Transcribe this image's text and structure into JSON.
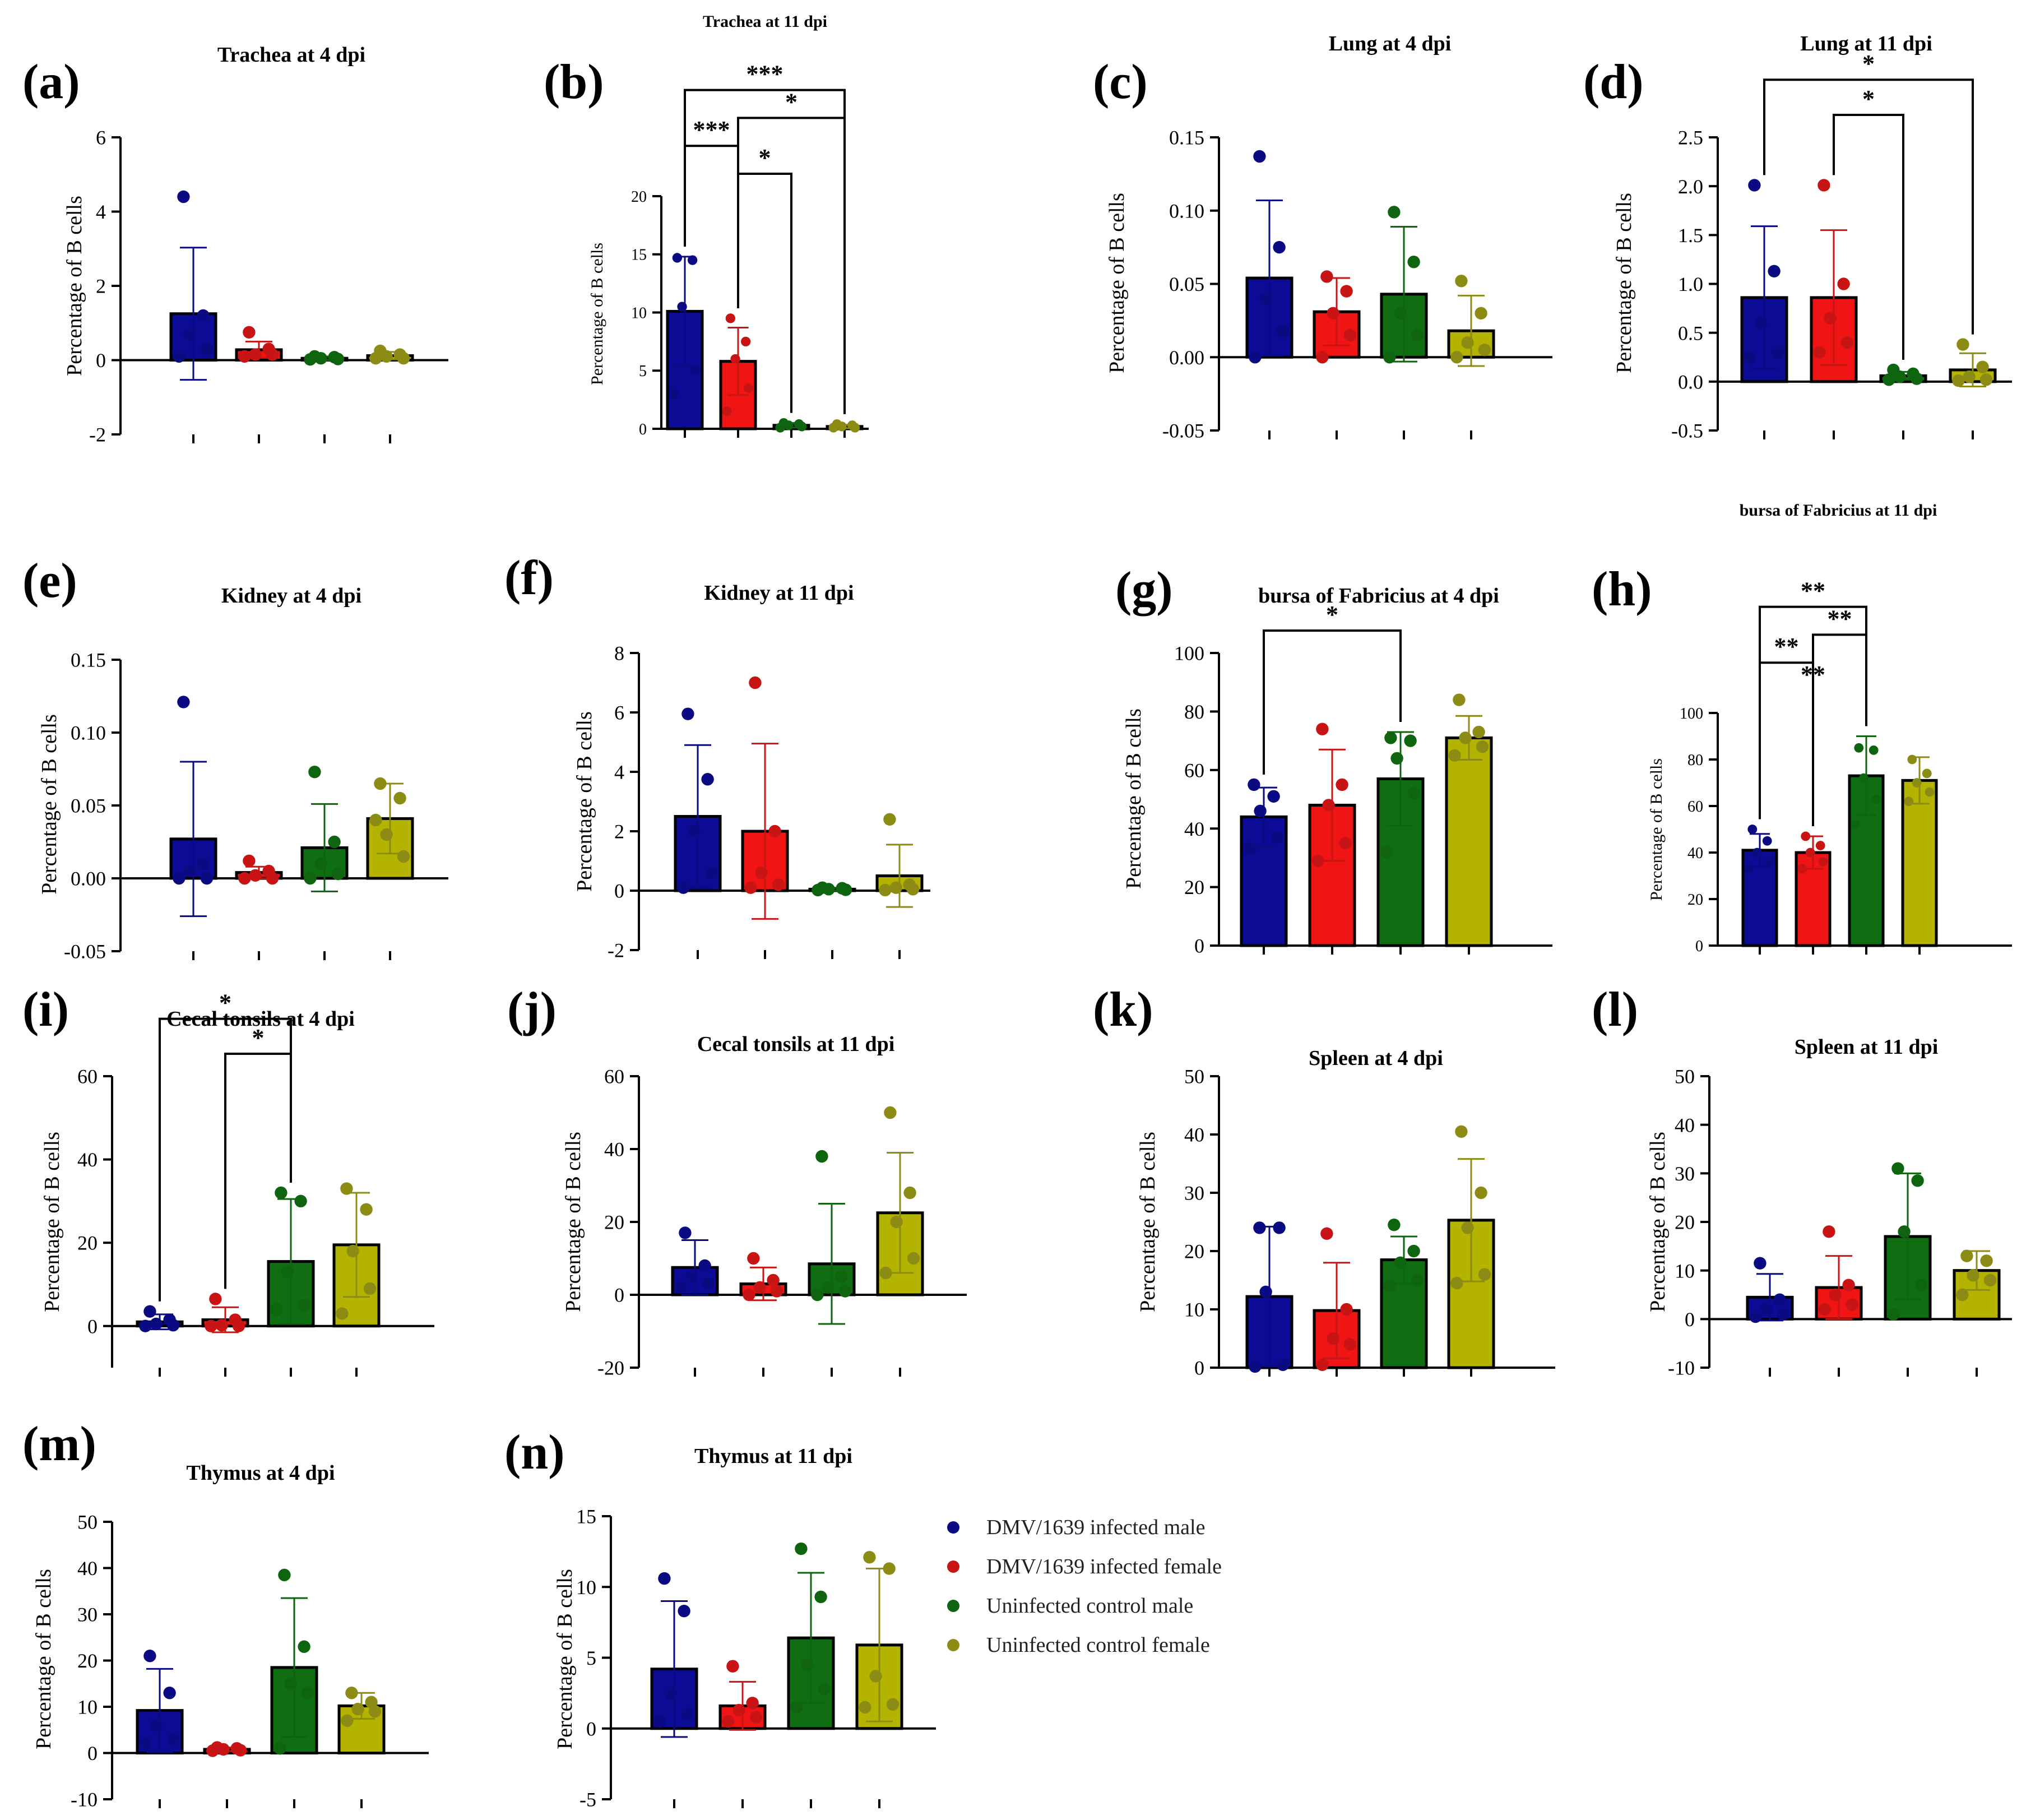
{
  "colors": {
    "male_infected": "#0b0b96",
    "female_infected": "#f01414",
    "male_control": "#0f6e12",
    "female_control": "#b4b400",
    "male_infected_dot": "#0a0a82",
    "female_infected_dot": "#c81414",
    "male_control_dot": "#0f640f",
    "female_control_dot": "#8c8c14"
  },
  "legend": {
    "items": [
      {
        "label": "DMV/1639 infected male",
        "color": "#0a0a82"
      },
      {
        "label": "DMV/1639 infected female",
        "color": "#c81414"
      },
      {
        "label": "Uninfected control male",
        "color": "#0f640f"
      },
      {
        "label": "Uninfected control female",
        "color": "#8c8c14"
      }
    ]
  },
  "chart_data": [
    {
      "letter": "(a)",
      "title": "Trachea at 4 dpi",
      "type": "bar",
      "ylabel": "Percentage of B cells",
      "ylim": [
        -2,
        6
      ],
      "yticks": [
        "-2",
        "0",
        "2",
        "4",
        "6"
      ],
      "bars": [
        1.25,
        0.28,
        0.05,
        0.12
      ],
      "errors": [
        1.78,
        0.22,
        0.05,
        0.1
      ],
      "points": [
        [
          4.4,
          1.2,
          0.7,
          0.3,
          0.1
        ],
        [
          0.75,
          0.3,
          0.15,
          0.15,
          0.1
        ],
        [
          0.1,
          0.08,
          0.05,
          0.03,
          0.02
        ],
        [
          0.25,
          0.15,
          0.1,
          0.05,
          0.05
        ]
      ],
      "sig": []
    },
    {
      "letter": "(b)",
      "title": "Trachea at 11 dpi",
      "type": "bar",
      "ylabel": "Percentage of B cells",
      "ylim": [
        0,
        20
      ],
      "yticks": [
        "0",
        "5",
        "10",
        "15",
        "20"
      ],
      "bars": [
        10.1,
        5.8,
        0.3,
        0.2
      ],
      "errors": [
        4.7,
        2.9,
        0.2,
        0.15
      ],
      "points": [
        [
          14.7,
          14.5,
          10.5,
          5.0,
          3.0
        ],
        [
          9.5,
          7.5,
          6.0,
          3.5,
          1.5
        ],
        [
          0.5,
          0.4,
          0.3,
          0.2,
          0.1
        ],
        [
          0.4,
          0.3,
          0.2,
          0.1,
          0.1
        ]
      ],
      "sig": [
        {
          "from": 1,
          "to": 3,
          "label": "*"
        },
        {
          "from": 0,
          "to": 2,
          "label": "***"
        },
        {
          "from": 1,
          "to": 4,
          "label": "*"
        },
        {
          "from": 0,
          "to": 4,
          "label": "***"
        }
      ]
    },
    {
      "letter": "(c)",
      "title": "Lung at 4 dpi",
      "type": "bar",
      "ylabel": "Percentage of B cells",
      "ylim": [
        -0.05,
        0.15
      ],
      "yticks": [
        "-0.05",
        "0.00",
        "0.05",
        "0.10",
        "0.15"
      ],
      "bars": [
        0.054,
        0.031,
        0.043,
        0.018
      ],
      "errors": [
        0.053,
        0.023,
        0.046,
        0.024
      ],
      "points": [
        [
          0.137,
          0.075,
          0.04,
          0.018,
          0.0
        ],
        [
          0.055,
          0.045,
          0.03,
          0.015,
          0.0
        ],
        [
          0.099,
          0.065,
          0.03,
          0.015,
          0.0
        ],
        [
          0.052,
          0.03,
          0.01,
          0.005,
          0.0
        ]
      ],
      "sig": []
    },
    {
      "letter": "(d)",
      "title": "Lung at 11 dpi",
      "type": "bar",
      "ylabel": "Percentage of B cells",
      "ylim": [
        -0.5,
        2.5
      ],
      "yticks": [
        "-0.5",
        "0.0",
        "0.5",
        "1.0",
        "1.5",
        "2.0",
        "2.5"
      ],
      "bars": [
        0.86,
        0.86,
        0.06,
        0.12
      ],
      "errors": [
        0.73,
        0.69,
        0.04,
        0.17
      ],
      "points": [
        [
          2.01,
          1.13,
          0.6,
          0.3,
          0.25
        ],
        [
          2.01,
          1.0,
          0.65,
          0.4,
          0.3
        ],
        [
          0.12,
          0.08,
          0.05,
          0.03,
          0.02
        ],
        [
          0.38,
          0.15,
          0.05,
          0.02,
          0.01
        ]
      ],
      "sig": [
        {
          "from": 1,
          "to": 3,
          "label": "*"
        },
        {
          "from": 0,
          "to": 4,
          "label": "*"
        }
      ]
    },
    {
      "letter": "(e)",
      "title": "Kidney at 4 dpi",
      "type": "bar",
      "ylabel": "Percentage of B cells",
      "ylim": [
        -0.05,
        0.15
      ],
      "yticks": [
        "-0.05",
        "0.00",
        "0.05",
        "0.10",
        "0.15"
      ],
      "bars": [
        0.027,
        0.004,
        0.021,
        0.041
      ],
      "errors": [
        0.053,
        0.004,
        0.03,
        0.024
      ],
      "points": [
        [
          0.121,
          0.01,
          0.005,
          0.0,
          0.0
        ],
        [
          0.012,
          0.005,
          0.002,
          0.0,
          0.0
        ],
        [
          0.073,
          0.025,
          0.01,
          0.003,
          0.0
        ],
        [
          0.065,
          0.055,
          0.03,
          0.015,
          0.04
        ]
      ],
      "sig": []
    },
    {
      "letter": "(f)",
      "title": "Kidney at 11 dpi",
      "type": "bar",
      "ylabel": "Percentage of B cells",
      "ylim": [
        -2,
        8
      ],
      "yticks": [
        "-2",
        "0",
        "2",
        "4",
        "6",
        "8"
      ],
      "bars": [
        2.5,
        2.0,
        0.05,
        0.5
      ],
      "errors": [
        2.4,
        2.95,
        0.05,
        1.05
      ],
      "points": [
        [
          5.95,
          3.75,
          2.0,
          0.6,
          0.1
        ],
        [
          7.0,
          2.0,
          0.6,
          0.2,
          0.1
        ],
        [
          0.1,
          0.08,
          0.05,
          0.03,
          0.02
        ],
        [
          2.4,
          0.2,
          0.1,
          0.05,
          0.02
        ]
      ],
      "sig": []
    },
    {
      "letter": "(g)",
      "title": "bursa of Fabricius at 4 dpi",
      "type": "bar",
      "ylabel": "Percentage of B cells",
      "ylim": [
        0,
        100
      ],
      "yticks": [
        "0",
        "20",
        "40",
        "60",
        "80",
        "100"
      ],
      "bars": [
        44,
        48,
        57,
        71
      ],
      "errors": [
        10,
        19,
        16,
        7.5
      ],
      "points": [
        [
          55,
          51,
          46,
          37,
          33
        ],
        [
          74,
          55,
          48,
          35,
          29
        ],
        [
          71,
          70,
          64,
          52,
          32
        ],
        [
          84,
          73,
          71,
          68,
          65
        ]
      ],
      "sig": [
        {
          "from": 0,
          "to": 3,
          "label": "*"
        }
      ]
    },
    {
      "letter": "(h)",
      "title": "bursa of Fabricius at 11 dpi",
      "type": "bar",
      "ylabel": "Percentage of B cells",
      "ylim": [
        0,
        100
      ],
      "yticks": [
        "0",
        "20",
        "40",
        "60",
        "80",
        "100"
      ],
      "bars": [
        41,
        40,
        73,
        71
      ],
      "errors": [
        7,
        7,
        17,
        10
      ],
      "points": [
        [
          50,
          45,
          40,
          36,
          33
        ],
        [
          47,
          43,
          40,
          36,
          33
        ],
        [
          85,
          84,
          72,
          63,
          52
        ],
        [
          80,
          74,
          70,
          66,
          62
        ]
      ],
      "sig": [
        {
          "from": 1,
          "to": 2,
          "label": "**"
        },
        {
          "from": 0,
          "to": 2,
          "label": "**"
        },
        {
          "from": 1,
          "to": 3,
          "label": "**"
        },
        {
          "from": 0,
          "to": 3,
          "label": "**"
        }
      ]
    },
    {
      "letter": "(i)",
      "title": "Cecal tonsils at 4 dpi",
      "type": "bar",
      "ylabel": "Percentage of B cells",
      "ylim": [
        -10,
        60
      ],
      "yticks": [
        "0",
        "20",
        "40",
        "60"
      ],
      "bars": [
        1.0,
        1.5,
        15.5,
        19.5
      ],
      "errors": [
        1.8,
        3.0,
        15,
        12.5
      ],
      "points": [
        [
          3.5,
          1.5,
          0.5,
          0.2,
          0.0
        ],
        [
          6.5,
          1.5,
          0.2,
          0.0,
          0.0
        ],
        [
          32,
          30,
          13,
          5,
          4
        ],
        [
          33,
          28,
          18,
          9,
          3
        ]
      ],
      "sig": [
        {
          "from": 1,
          "to": 3,
          "label": "*"
        },
        {
          "from": 0,
          "to": 3,
          "label": "*"
        }
      ]
    },
    {
      "letter": "(j)",
      "title": "Cecal tonsils at 11 dpi",
      "type": "bar",
      "ylabel": "Percentage of B cells",
      "ylim": [
        -20,
        60
      ],
      "yticks": [
        "-20",
        "0",
        "20",
        "40",
        "60"
      ],
      "bars": [
        7.5,
        3.0,
        8.5,
        22.5
      ],
      "errors": [
        7.5,
        4.5,
        16.5,
        16.5
      ],
      "points": [
        [
          17,
          8,
          5,
          3,
          2
        ],
        [
          10,
          4,
          2,
          1,
          0
        ],
        [
          38,
          5,
          2,
          1,
          0
        ],
        [
          50,
          28,
          20,
          10,
          6
        ]
      ],
      "sig": []
    },
    {
      "letter": "(k)",
      "title": "Spleen at 4 dpi",
      "type": "bar",
      "ylabel": "Percentage of B cells",
      "ylim": [
        0,
        50
      ],
      "yticks": [
        "0",
        "10",
        "20",
        "30",
        "40",
        "50"
      ],
      "bars": [
        12.2,
        9.8,
        18.5,
        25.3
      ],
      "errors": [
        12,
        8.2,
        4,
        10.5
      ],
      "points": [
        [
          24,
          24,
          13,
          0.5,
          0.2
        ],
        [
          23,
          10,
          5,
          4,
          0.5
        ],
        [
          24.5,
          20,
          18,
          15,
          14
        ],
        [
          40.5,
          30,
          24,
          16,
          14.5
        ]
      ],
      "sig": []
    },
    {
      "letter": "(l)",
      "title": "Spleen at 11 dpi",
      "type": "bar",
      "ylabel": "Percentage of B cells",
      "ylim": [
        -10,
        50
      ],
      "yticks": [
        "-10",
        "0",
        "10",
        "20",
        "30",
        "40",
        "50"
      ],
      "bars": [
        4.5,
        6.5,
        17,
        10
      ],
      "errors": [
        4.8,
        6.5,
        13,
        4
      ],
      "points": [
        [
          11.5,
          4,
          2,
          1,
          0.5
        ],
        [
          18,
          7,
          5,
          3,
          2
        ],
        [
          31,
          28.5,
          18,
          7,
          1
        ],
        [
          13,
          12,
          9,
          8,
          5
        ]
      ],
      "sig": []
    },
    {
      "letter": "(m)",
      "title": "Thymus at 4 dpi",
      "type": "bar",
      "ylabel": "Percentage of B cells",
      "ylim": [
        -10,
        50
      ],
      "yticks": [
        "-10",
        "0",
        "10",
        "20",
        "30",
        "40",
        "50"
      ],
      "bars": [
        9.2,
        0.8,
        18.5,
        10.2
      ],
      "errors": [
        9,
        0.4,
        15,
        2.8
      ],
      "points": [
        [
          21,
          13,
          6,
          3,
          2
        ],
        [
          1.2,
          1.0,
          0.8,
          0.6,
          0.5
        ],
        [
          38.5,
          23,
          15,
          13,
          1
        ],
        [
          13,
          11,
          9.5,
          9,
          7
        ]
      ],
      "sig": []
    },
    {
      "letter": "(n)",
      "title": "Thymus at 11 dpi",
      "type": "bar",
      "ylabel": "Percentage of B cells",
      "ylim": [
        -5,
        15
      ],
      "yticks": [
        "-5",
        "0",
        "5",
        "10",
        "15"
      ],
      "bars": [
        4.2,
        1.6,
        6.4,
        5.9
      ],
      "errors": [
        4.8,
        1.7,
        4.6,
        5.4
      ],
      "points": [
        [
          10.6,
          8.3,
          2.5,
          1.0,
          0.5
        ],
        [
          4.4,
          1.8,
          1.3,
          0.8,
          0.5
        ],
        [
          12.7,
          9.3,
          4.5,
          2.8,
          1.5
        ],
        [
          12.1,
          11.3,
          3.7,
          1.7,
          1.5
        ]
      ],
      "sig": []
    }
  ]
}
